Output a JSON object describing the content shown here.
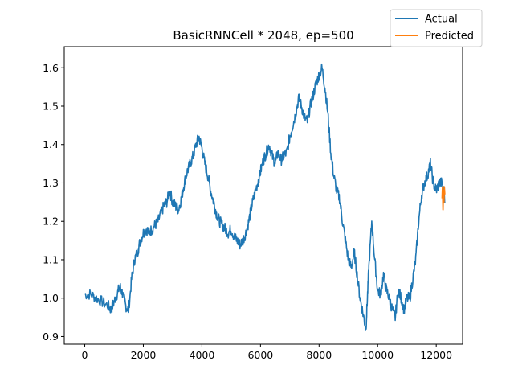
{
  "chart_data": {
    "type": "line",
    "title": "BasicRNNCell * 2048, ep=500",
    "xlabel": "",
    "ylabel": "",
    "xlim": [
      -700,
      12900
    ],
    "ylim": [
      0.88,
      1.655
    ],
    "xticks": [
      0,
      2000,
      4000,
      6000,
      8000,
      10000,
      12000
    ],
    "yticks": [
      0.9,
      1.0,
      1.1,
      1.2,
      1.3,
      1.4,
      1.5,
      1.6
    ],
    "xtick_labels": [
      "0",
      "2000",
      "4000",
      "6000",
      "8000",
      "10000",
      "12000"
    ],
    "ytick_labels": [
      "0.9",
      "1.0",
      "1.1",
      "1.2",
      "1.3",
      "1.4",
      "1.5",
      "1.6"
    ],
    "grid": false,
    "legend_position": "top-right, outside axes",
    "series": [
      {
        "name": "Actual",
        "color": "#1f77b4",
        "x": [
          0,
          200,
          400,
          600,
          800,
          900,
          1000,
          1100,
          1200,
          1300,
          1400,
          1500,
          1600,
          1700,
          1800,
          1900,
          2000,
          2100,
          2200,
          2300,
          2400,
          2500,
          2600,
          2700,
          2800,
          2900,
          3000,
          3100,
          3200,
          3300,
          3400,
          3500,
          3600,
          3700,
          3800,
          3900,
          4000,
          4100,
          4200,
          4300,
          4400,
          4500,
          4600,
          4700,
          4800,
          4900,
          5000,
          5100,
          5200,
          5300,
          5400,
          5500,
          5600,
          5700,
          5800,
          5900,
          6000,
          6100,
          6200,
          6300,
          6400,
          6500,
          6600,
          6700,
          6800,
          6900,
          7000,
          7100,
          7200,
          7300,
          7400,
          7500,
          7600,
          7700,
          7800,
          7900,
          8000,
          8100,
          8200,
          8300,
          8400,
          8500,
          8600,
          8700,
          8800,
          8900,
          9000,
          9100,
          9200,
          9300,
          9400,
          9500,
          9600,
          9650,
          9700,
          9800,
          9900,
          10000,
          10100,
          10200,
          10300,
          10400,
          10500,
          10600,
          10700,
          10800,
          10900,
          11000,
          11100,
          11200,
          11300,
          11400,
          11500,
          11600,
          11700,
          11800,
          11900,
          12000,
          12100,
          12200,
          12300
        ],
        "y": [
          1.01,
          1.01,
          1.0,
          0.99,
          0.98,
          0.97,
          0.99,
          1.01,
          1.03,
          1.01,
          0.98,
          0.97,
          1.05,
          1.1,
          1.12,
          1.15,
          1.17,
          1.18,
          1.17,
          1.18,
          1.19,
          1.2,
          1.22,
          1.24,
          1.25,
          1.28,
          1.25,
          1.24,
          1.23,
          1.26,
          1.3,
          1.33,
          1.35,
          1.37,
          1.4,
          1.42,
          1.39,
          1.35,
          1.32,
          1.28,
          1.25,
          1.22,
          1.2,
          1.19,
          1.18,
          1.17,
          1.18,
          1.16,
          1.15,
          1.14,
          1.15,
          1.17,
          1.2,
          1.24,
          1.27,
          1.3,
          1.33,
          1.36,
          1.38,
          1.4,
          1.37,
          1.35,
          1.38,
          1.36,
          1.37,
          1.38,
          1.42,
          1.45,
          1.48,
          1.52,
          1.5,
          1.47,
          1.46,
          1.5,
          1.53,
          1.56,
          1.58,
          1.6,
          1.55,
          1.48,
          1.38,
          1.32,
          1.28,
          1.26,
          1.2,
          1.15,
          1.1,
          1.08,
          1.12,
          1.06,
          1.0,
          0.96,
          0.92,
          1.0,
          1.08,
          1.2,
          1.1,
          1.02,
          1.01,
          1.06,
          1.02,
          1.0,
          0.97,
          0.95,
          1.02,
          1.0,
          0.97,
          1.0,
          1.0,
          1.05,
          1.1,
          1.2,
          1.27,
          1.3,
          1.32,
          1.35,
          1.3,
          1.28,
          1.3,
          1.3,
          1.25
        ]
      },
      {
        "name": "Predicted",
        "color": "#ff7f0e",
        "x": [
          12200,
          12215,
          12230,
          12245,
          12260,
          12275,
          12290
        ],
        "y": [
          1.26,
          1.29,
          1.23,
          1.28,
          1.25,
          1.29,
          1.27
        ]
      }
    ]
  }
}
